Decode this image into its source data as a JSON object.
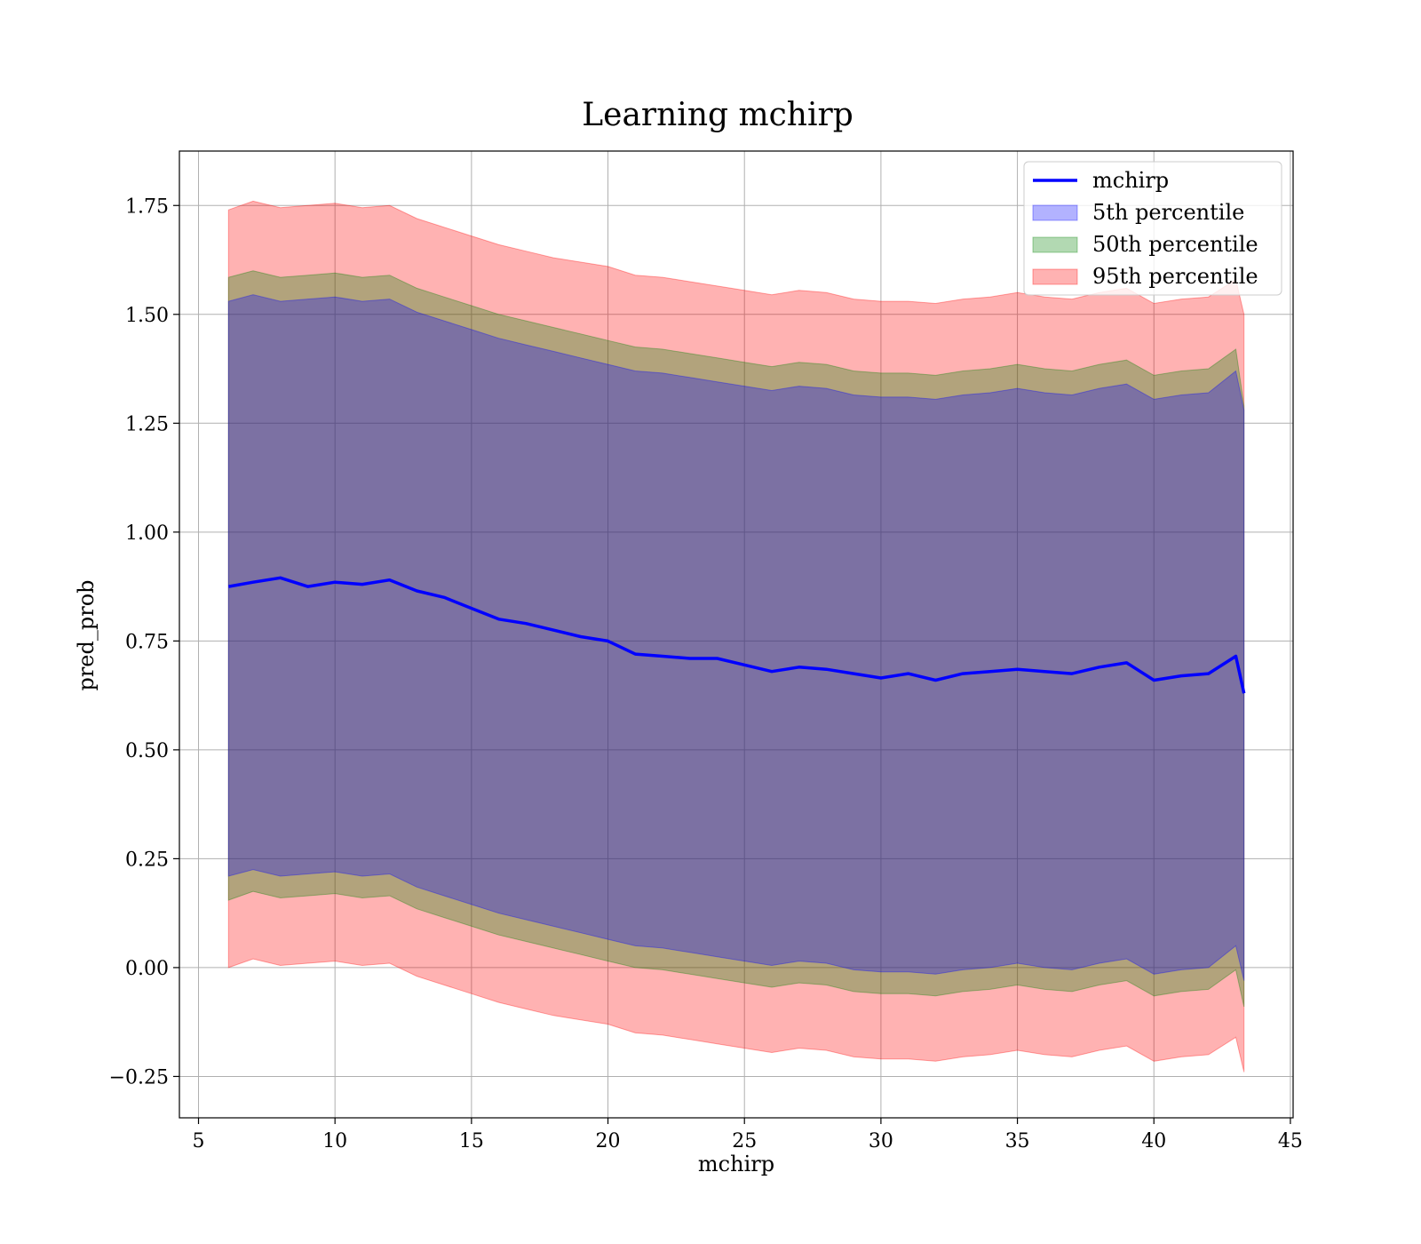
{
  "chart_data": {
    "type": "area",
    "title": "Learning mchirp",
    "xlabel": "mchirp",
    "ylabel": "pred_prob",
    "xlim": [
      4.3,
      45.1
    ],
    "ylim": [
      -0.345,
      1.875
    ],
    "xticks": [
      5,
      10,
      15,
      20,
      25,
      30,
      35,
      40,
      45
    ],
    "xtick_labels": [
      "5",
      "10",
      "15",
      "20",
      "25",
      "30",
      "35",
      "40",
      "45"
    ],
    "yticks": [
      -0.25,
      0.0,
      0.25,
      0.5,
      0.75,
      1.0,
      1.25,
      1.5,
      1.75
    ],
    "ytick_labels": [
      "−0.25",
      "0.00",
      "0.25",
      "0.50",
      "0.75",
      "1.00",
      "1.25",
      "1.50",
      "1.75"
    ],
    "grid": true,
    "legend_position": "top-right",
    "x": [
      6.1,
      7,
      8,
      9,
      10,
      11,
      12,
      13,
      14,
      15,
      16,
      17,
      18,
      19,
      20,
      21,
      22,
      23,
      24,
      25,
      26,
      27,
      28,
      29,
      30,
      31,
      32,
      33,
      34,
      35,
      36,
      37,
      38,
      39,
      40,
      41,
      42,
      43,
      43.3
    ],
    "line": {
      "name": "mchirp",
      "color": "#0000ff",
      "values": [
        0.875,
        0.885,
        0.895,
        0.875,
        0.885,
        0.88,
        0.89,
        0.865,
        0.85,
        0.825,
        0.8,
        0.79,
        0.775,
        0.76,
        0.75,
        0.72,
        0.715,
        0.71,
        0.71,
        0.695,
        0.68,
        0.69,
        0.685,
        0.675,
        0.665,
        0.675,
        0.66,
        0.675,
        0.68,
        0.685,
        0.68,
        0.675,
        0.69,
        0.7,
        0.66,
        0.67,
        0.675,
        0.715,
        0.63
      ]
    },
    "bands": [
      {
        "name": "95th percentile",
        "color": "#ff0000",
        "opacity": 0.3,
        "upper": [
          1.74,
          1.76,
          1.745,
          1.75,
          1.755,
          1.745,
          1.75,
          1.72,
          1.7,
          1.68,
          1.66,
          1.645,
          1.63,
          1.62,
          1.61,
          1.59,
          1.585,
          1.575,
          1.565,
          1.555,
          1.545,
          1.555,
          1.55,
          1.535,
          1.53,
          1.53,
          1.525,
          1.535,
          1.54,
          1.55,
          1.54,
          1.535,
          1.55,
          1.56,
          1.525,
          1.535,
          1.54,
          1.58,
          1.5
        ],
        "lower": [
          0.0,
          0.02,
          0.005,
          0.01,
          0.015,
          0.005,
          0.01,
          -0.02,
          -0.04,
          -0.06,
          -0.08,
          -0.095,
          -0.11,
          -0.12,
          -0.13,
          -0.15,
          -0.155,
          -0.165,
          -0.175,
          -0.185,
          -0.195,
          -0.185,
          -0.19,
          -0.205,
          -0.21,
          -0.21,
          -0.215,
          -0.205,
          -0.2,
          -0.19,
          -0.2,
          -0.205,
          -0.19,
          -0.18,
          -0.215,
          -0.205,
          -0.2,
          -0.16,
          -0.24
        ]
      },
      {
        "name": "50th percentile",
        "color": "#008000",
        "opacity": 0.3,
        "upper": [
          1.585,
          1.6,
          1.585,
          1.59,
          1.595,
          1.585,
          1.59,
          1.56,
          1.54,
          1.52,
          1.5,
          1.485,
          1.47,
          1.455,
          1.44,
          1.425,
          1.42,
          1.41,
          1.4,
          1.39,
          1.38,
          1.39,
          1.385,
          1.37,
          1.365,
          1.365,
          1.36,
          1.37,
          1.375,
          1.385,
          1.375,
          1.37,
          1.385,
          1.395,
          1.36,
          1.37,
          1.375,
          1.42,
          1.29
        ],
        "lower": [
          0.155,
          0.175,
          0.16,
          0.165,
          0.17,
          0.16,
          0.165,
          0.135,
          0.115,
          0.095,
          0.075,
          0.06,
          0.045,
          0.03,
          0.015,
          0.0,
          -0.005,
          -0.015,
          -0.025,
          -0.035,
          -0.045,
          -0.035,
          -0.04,
          -0.055,
          -0.06,
          -0.06,
          -0.065,
          -0.055,
          -0.05,
          -0.04,
          -0.05,
          -0.055,
          -0.04,
          -0.03,
          -0.065,
          -0.055,
          -0.05,
          -0.005,
          -0.09
        ]
      },
      {
        "name": "5th percentile",
        "color": "#0000ff",
        "opacity": 0.3,
        "upper": [
          1.53,
          1.545,
          1.53,
          1.535,
          1.54,
          1.53,
          1.535,
          1.505,
          1.485,
          1.465,
          1.445,
          1.43,
          1.415,
          1.4,
          1.385,
          1.37,
          1.365,
          1.355,
          1.345,
          1.335,
          1.325,
          1.335,
          1.33,
          1.315,
          1.31,
          1.31,
          1.305,
          1.315,
          1.32,
          1.33,
          1.32,
          1.315,
          1.33,
          1.34,
          1.305,
          1.315,
          1.32,
          1.37,
          1.28
        ],
        "lower": [
          0.21,
          0.225,
          0.21,
          0.215,
          0.22,
          0.21,
          0.215,
          0.185,
          0.165,
          0.145,
          0.125,
          0.11,
          0.095,
          0.08,
          0.065,
          0.05,
          0.045,
          0.035,
          0.025,
          0.015,
          0.005,
          0.015,
          0.01,
          -0.005,
          -0.01,
          -0.01,
          -0.015,
          -0.005,
          0.0,
          0.01,
          0.0,
          -0.005,
          0.01,
          0.02,
          -0.015,
          -0.005,
          0.0,
          0.05,
          -0.03
        ]
      }
    ],
    "legend": [
      {
        "label": "mchirp",
        "kind": "line",
        "color": "#0000ff"
      },
      {
        "label": "5th percentile",
        "kind": "patch",
        "color": "#0000ff"
      },
      {
        "label": "50th percentile",
        "kind": "patch",
        "color": "#008000"
      },
      {
        "label": "95th percentile",
        "kind": "patch",
        "color": "#ff0000"
      }
    ]
  }
}
